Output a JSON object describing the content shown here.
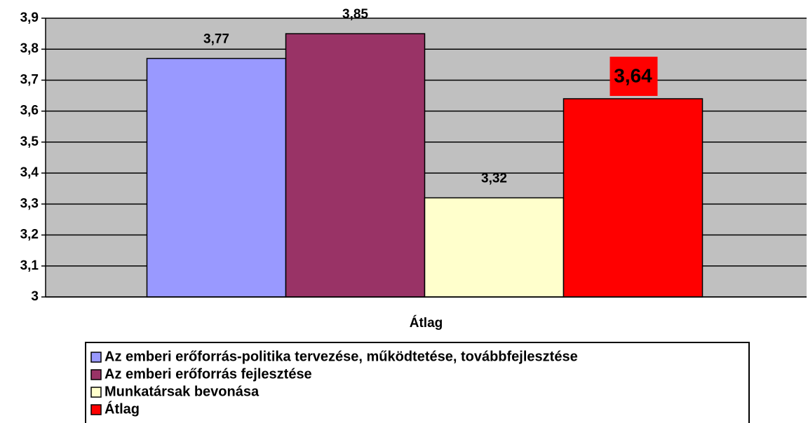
{
  "chart_data": {
    "type": "bar",
    "categories": [
      "Átlag"
    ],
    "series": [
      {
        "name": "Az emberi erőforrás-politika tervezése, működtetése, továbbfejlesztése",
        "color": "#9999ff",
        "values": [
          3.77
        ],
        "value_labels": [
          "3,77"
        ]
      },
      {
        "name": "Az emberi erőforrás fejlesztése",
        "color": "#993366",
        "values": [
          3.85
        ],
        "value_labels": [
          "3,85"
        ]
      },
      {
        "name": "Munkatársak bevonása",
        "color": "#ffffcc",
        "values": [
          3.32
        ],
        "value_labels": [
          "3,32"
        ]
      },
      {
        "name": "Átlag",
        "color": "#ff0000",
        "values": [
          3.64
        ],
        "value_labels": [
          "3,64"
        ],
        "label_box": true
      }
    ],
    "ylim": [
      3,
      3.9
    ],
    "yticks": [
      3,
      {
        "value": 3.1,
        "label": "3,1"
      },
      {
        "value": 3.2,
        "label": "3,2"
      },
      {
        "value": 3.3,
        "label": "3,3"
      },
      {
        "value": 3.4,
        "label": "3,4"
      },
      {
        "value": 3.5,
        "label": "3,5"
      },
      {
        "value": 3.6,
        "label": "3,6"
      },
      {
        "value": 3.7,
        "label": "3,7"
      },
      {
        "value": 3.8,
        "label": "3,8"
      },
      {
        "value": 3.9,
        "label": "3,9"
      }
    ],
    "grid": true,
    "plot_background": "#c0c0c0"
  }
}
